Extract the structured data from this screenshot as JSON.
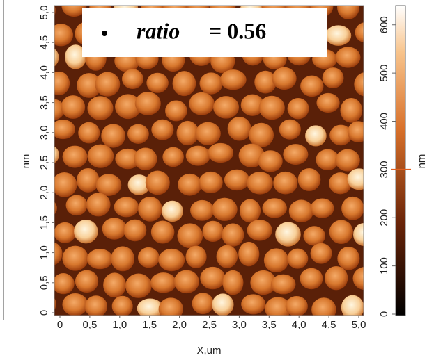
{
  "chart_data": {
    "type": "heatmap",
    "xlabel": "X,um",
    "ylabel": "nm",
    "xlim": [
      0,
      5
    ],
    "ylim": [
      0,
      5
    ],
    "xticks": [
      0,
      {
        "value": 0.5,
        "label": "0,5"
      },
      {
        "value": 1,
        "label": "1,0"
      },
      {
        "value": 1.5,
        "label": "1,5"
      },
      {
        "value": 2,
        "label": "2,0"
      },
      {
        "value": 2.5,
        "label": "2,5"
      },
      {
        "value": 3,
        "label": "3,0"
      },
      {
        "value": 3.5,
        "label": "3,5"
      },
      {
        "value": 4,
        "label": "4,0"
      },
      {
        "value": 4.5,
        "label": "4,5"
      },
      {
        "value": 5,
        "label": "5,0"
      }
    ],
    "yticks": [
      0,
      {
        "value": 0.5,
        "label": "0,5"
      },
      {
        "value": 1,
        "label": "1,0"
      },
      {
        "value": 1.5,
        "label": "1,5"
      },
      {
        "value": 2,
        "label": "2,0"
      },
      {
        "value": 2.5,
        "label": "2,5"
      },
      {
        "value": 3,
        "label": "3,0"
      },
      {
        "value": 3.5,
        "label": "3,5"
      },
      {
        "value": 4,
        "label": "4,0"
      },
      {
        "value": 4.5,
        "label": "4,5"
      },
      {
        "value": 5,
        "label": "5,0"
      }
    ],
    "colorbar": {
      "label": "nm",
      "lim": [
        0,
        640
      ],
      "ticks": [
        0,
        100,
        200,
        300,
        400,
        500,
        600
      ],
      "marker": 300
    },
    "annotation": {
      "symbol": "ratio",
      "text": "= 0.56"
    }
  }
}
